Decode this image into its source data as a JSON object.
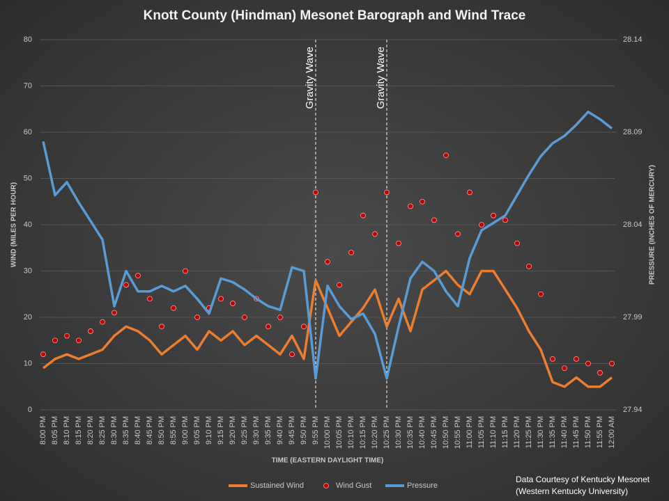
{
  "chart_data": {
    "type": "line",
    "title": "Knott County (Hindman) Mesonet Barograph and Wind Trace",
    "x_label": "TIME (EASTERN DAYLIGHT TIME)",
    "y_label": "WIND (MILES PER HOUR)",
    "y2_label": "PRESSURE (INCHES OF MERCURY)",
    "categories": [
      "8:00 PM",
      "8:05 PM",
      "8:10 PM",
      "8:15 PM",
      "8:20 PM",
      "8:25 PM",
      "8:30 PM",
      "8:35 PM",
      "8:40 PM",
      "8:45 PM",
      "8:50 PM",
      "8:55 PM",
      "9:00 PM",
      "9:05 PM",
      "9:10 PM",
      "9:15 PM",
      "9:20 PM",
      "9:25 PM",
      "9:30 PM",
      "9:35 PM",
      "9:40 PM",
      "9:45 PM",
      "9:50 PM",
      "9:55 PM",
      "10:00 PM",
      "10:05 PM",
      "10:10 PM",
      "10:15 PM",
      "10:20 PM",
      "10:25 PM",
      "10:30 PM",
      "10:35 PM",
      "10:40 PM",
      "10:45 PM",
      "10:50 PM",
      "10:55 PM",
      "11:00 PM",
      "11:05 PM",
      "11:10 PM",
      "11:15 PM",
      "11:20 PM",
      "11:25 PM",
      "11:30 PM",
      "11:35 PM",
      "11:40 PM",
      "11:45 PM",
      "11:50 PM",
      "11:55 PM",
      "12:00 AM"
    ],
    "series": [
      {
        "name": "Sustained Wind",
        "mark": "line",
        "color": "#ed7d31",
        "axis": "y",
        "values": [
          9,
          11,
          12,
          11,
          12,
          13,
          16,
          18,
          17,
          15,
          12,
          14,
          16,
          13,
          17,
          15,
          17,
          14,
          16,
          14,
          12,
          16,
          11,
          28,
          22,
          16,
          19,
          22,
          26,
          18,
          24,
          17,
          26,
          28,
          30,
          27,
          25,
          30,
          30,
          26,
          22,
          17,
          13,
          6,
          5,
          7,
          5,
          5,
          7
        ]
      },
      {
        "name": "Wind Gust",
        "mark": "dot",
        "color": "#c00000",
        "axis": "y",
        "values": [
          12,
          15,
          16,
          15,
          17,
          19,
          21,
          27,
          29,
          24,
          18,
          22,
          30,
          20,
          22,
          24,
          23,
          20,
          24,
          18,
          20,
          12,
          18,
          47,
          32,
          27,
          34,
          42,
          38,
          47,
          36,
          44,
          45,
          41,
          55,
          38,
          47,
          40,
          42,
          41,
          36,
          31,
          25,
          11,
          9,
          11,
          10,
          8,
          10
        ]
      },
      {
        "name": "Pressure",
        "mark": "line",
        "color": "#5b9bd5",
        "axis": "y2",
        "values": [
          28.085,
          28.056,
          28.063,
          28.052,
          28.042,
          28.032,
          27.996,
          28.015,
          28.004,
          28.004,
          28.007,
          28.004,
          28.007,
          28.0,
          27.992,
          28.011,
          28.009,
          28.005,
          28.0,
          27.996,
          27.994,
          28.017,
          28.015,
          27.957,
          28.007,
          27.996,
          27.989,
          27.992,
          27.981,
          27.957,
          27.985,
          28.011,
          28.02,
          28.015,
          28.004,
          27.996,
          28.022,
          28.037,
          28.041,
          28.045,
          28.056,
          28.067,
          28.077,
          28.084,
          28.088,
          28.094,
          28.101,
          28.097,
          28.092
        ]
      }
    ],
    "ylim": [
      0,
      80
    ],
    "yticks": [
      0,
      10,
      20,
      30,
      40,
      50,
      60,
      70,
      80
    ],
    "y2lim": [
      27.94,
      28.14
    ],
    "y2ticks": [
      27.94,
      27.99,
      28.04,
      28.09,
      28.14
    ],
    "grid": true,
    "legend": "bottom",
    "annotations": [
      {
        "text": "Gravity Wave",
        "x": "9:55 PM"
      },
      {
        "text": "Gravity Wave",
        "x": "10:25 PM"
      }
    ],
    "credit": [
      "Data Courtesy of Kentucky Mesonet",
      "(Western Kentucky University)"
    ]
  }
}
